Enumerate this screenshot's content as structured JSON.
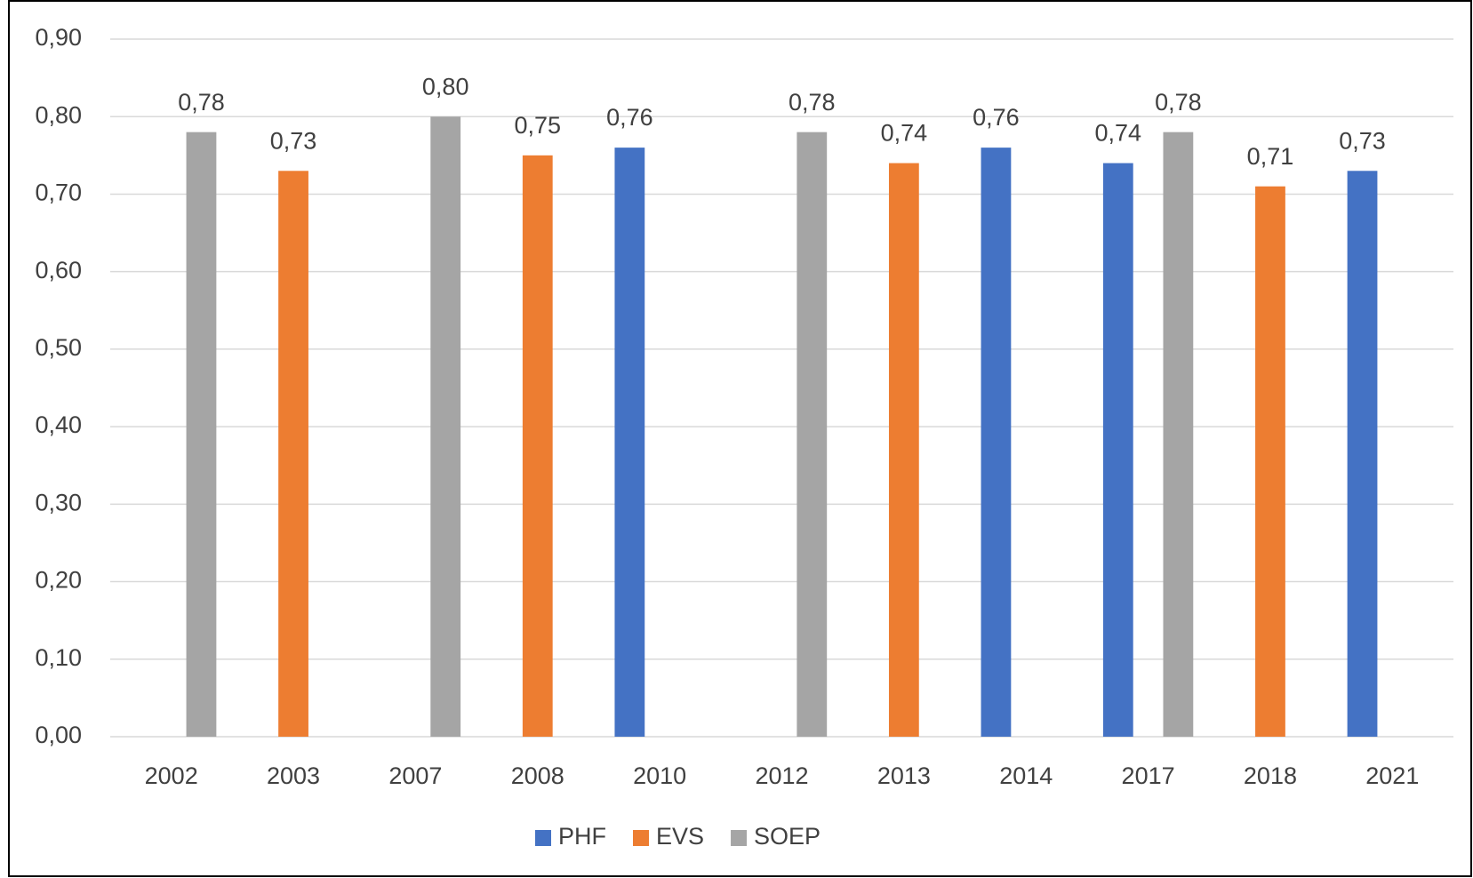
{
  "chart_data": {
    "type": "bar",
    "categories": [
      "2002",
      "2003",
      "2007",
      "2008",
      "2010",
      "2012",
      "2013",
      "2014",
      "2017",
      "2018",
      "2021"
    ],
    "series": [
      {
        "name": "PHF",
        "color": "#4472c4",
        "values": [
          null,
          null,
          null,
          null,
          0.76,
          null,
          null,
          0.76,
          0.74,
          null,
          0.73
        ],
        "value_labels": [
          null,
          null,
          null,
          null,
          "0,76",
          null,
          null,
          "0,76",
          "0,74",
          null,
          "0,73"
        ]
      },
      {
        "name": "EVS",
        "color": "#ed7d31",
        "values": [
          null,
          0.73,
          null,
          0.75,
          null,
          null,
          0.74,
          null,
          null,
          0.71,
          null
        ],
        "value_labels": [
          null,
          "0,73",
          null,
          "0,75",
          null,
          null,
          "0,74",
          null,
          null,
          "0,71",
          null
        ]
      },
      {
        "name": "SOEP",
        "color": "#a5a5a5",
        "values": [
          0.78,
          null,
          0.8,
          null,
          null,
          0.78,
          null,
          null,
          0.78,
          null,
          null
        ],
        "value_labels": [
          "0,78",
          null,
          "0,80",
          null,
          null,
          "0,78",
          null,
          null,
          "0,78",
          null,
          null
        ]
      }
    ],
    "ylim": [
      0,
      0.9
    ],
    "yticks": [
      {
        "value": 0,
        "label": "0,00"
      },
      {
        "value": 0.1,
        "label": "0,10"
      },
      {
        "value": 0.2,
        "label": "0,20"
      },
      {
        "value": 0.3,
        "label": "0,30"
      },
      {
        "value": 0.4,
        "label": "0,40"
      },
      {
        "value": 0.5,
        "label": "0,50"
      },
      {
        "value": 0.6,
        "label": "0,60"
      },
      {
        "value": 0.7,
        "label": "0,70"
      },
      {
        "value": 0.8,
        "label": "0,80"
      },
      {
        "value": 0.9,
        "label": "0,90"
      }
    ],
    "grid": true,
    "legend": "bottom"
  }
}
